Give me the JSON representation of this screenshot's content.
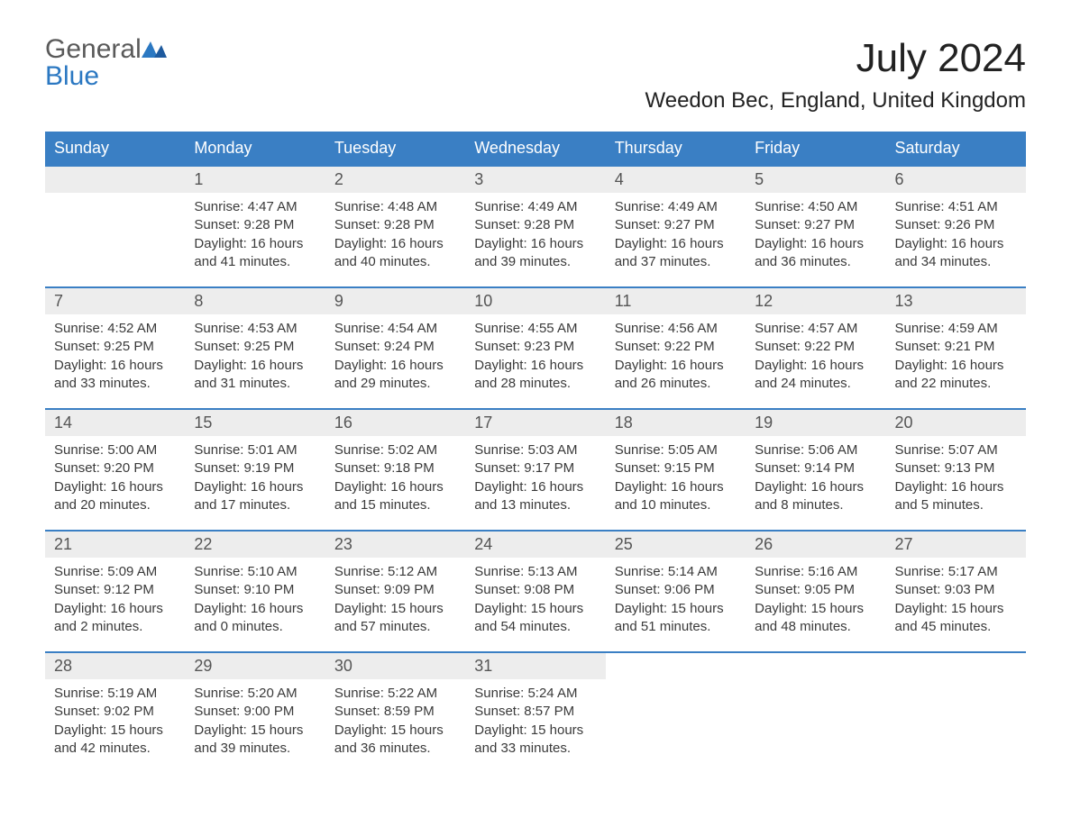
{
  "brand": {
    "general": "General",
    "blue": "Blue"
  },
  "title": "July 2024",
  "location": "Weedon Bec, England, United Kingdom",
  "colors": {
    "header_bg": "#3a7fc4",
    "header_text": "#ffffff",
    "daynum_bg": "#ededed",
    "text": "#3a3a3a",
    "brand_blue": "#2b78c2",
    "brand_gray": "#5a5a5a"
  },
  "weekdays": [
    "Sunday",
    "Monday",
    "Tuesday",
    "Wednesday",
    "Thursday",
    "Friday",
    "Saturday"
  ],
  "weeks": [
    [
      null,
      {
        "n": "1",
        "sunrise": "4:47 AM",
        "sunset": "9:28 PM",
        "dl1": "Daylight: 16 hours",
        "dl2": "and 41 minutes."
      },
      {
        "n": "2",
        "sunrise": "4:48 AM",
        "sunset": "9:28 PM",
        "dl1": "Daylight: 16 hours",
        "dl2": "and 40 minutes."
      },
      {
        "n": "3",
        "sunrise": "4:49 AM",
        "sunset": "9:28 PM",
        "dl1": "Daylight: 16 hours",
        "dl2": "and 39 minutes."
      },
      {
        "n": "4",
        "sunrise": "4:49 AM",
        "sunset": "9:27 PM",
        "dl1": "Daylight: 16 hours",
        "dl2": "and 37 minutes."
      },
      {
        "n": "5",
        "sunrise": "4:50 AM",
        "sunset": "9:27 PM",
        "dl1": "Daylight: 16 hours",
        "dl2": "and 36 minutes."
      },
      {
        "n": "6",
        "sunrise": "4:51 AM",
        "sunset": "9:26 PM",
        "dl1": "Daylight: 16 hours",
        "dl2": "and 34 minutes."
      }
    ],
    [
      {
        "n": "7",
        "sunrise": "4:52 AM",
        "sunset": "9:25 PM",
        "dl1": "Daylight: 16 hours",
        "dl2": "and 33 minutes."
      },
      {
        "n": "8",
        "sunrise": "4:53 AM",
        "sunset": "9:25 PM",
        "dl1": "Daylight: 16 hours",
        "dl2": "and 31 minutes."
      },
      {
        "n": "9",
        "sunrise": "4:54 AM",
        "sunset": "9:24 PM",
        "dl1": "Daylight: 16 hours",
        "dl2": "and 29 minutes."
      },
      {
        "n": "10",
        "sunrise": "4:55 AM",
        "sunset": "9:23 PM",
        "dl1": "Daylight: 16 hours",
        "dl2": "and 28 minutes."
      },
      {
        "n": "11",
        "sunrise": "4:56 AM",
        "sunset": "9:22 PM",
        "dl1": "Daylight: 16 hours",
        "dl2": "and 26 minutes."
      },
      {
        "n": "12",
        "sunrise": "4:57 AM",
        "sunset": "9:22 PM",
        "dl1": "Daylight: 16 hours",
        "dl2": "and 24 minutes."
      },
      {
        "n": "13",
        "sunrise": "4:59 AM",
        "sunset": "9:21 PM",
        "dl1": "Daylight: 16 hours",
        "dl2": "and 22 minutes."
      }
    ],
    [
      {
        "n": "14",
        "sunrise": "5:00 AM",
        "sunset": "9:20 PM",
        "dl1": "Daylight: 16 hours",
        "dl2": "and 20 minutes."
      },
      {
        "n": "15",
        "sunrise": "5:01 AM",
        "sunset": "9:19 PM",
        "dl1": "Daylight: 16 hours",
        "dl2": "and 17 minutes."
      },
      {
        "n": "16",
        "sunrise": "5:02 AM",
        "sunset": "9:18 PM",
        "dl1": "Daylight: 16 hours",
        "dl2": "and 15 minutes."
      },
      {
        "n": "17",
        "sunrise": "5:03 AM",
        "sunset": "9:17 PM",
        "dl1": "Daylight: 16 hours",
        "dl2": "and 13 minutes."
      },
      {
        "n": "18",
        "sunrise": "5:05 AM",
        "sunset": "9:15 PM",
        "dl1": "Daylight: 16 hours",
        "dl2": "and 10 minutes."
      },
      {
        "n": "19",
        "sunrise": "5:06 AM",
        "sunset": "9:14 PM",
        "dl1": "Daylight: 16 hours",
        "dl2": "and 8 minutes."
      },
      {
        "n": "20",
        "sunrise": "5:07 AM",
        "sunset": "9:13 PM",
        "dl1": "Daylight: 16 hours",
        "dl2": "and 5 minutes."
      }
    ],
    [
      {
        "n": "21",
        "sunrise": "5:09 AM",
        "sunset": "9:12 PM",
        "dl1": "Daylight: 16 hours",
        "dl2": "and 2 minutes."
      },
      {
        "n": "22",
        "sunrise": "5:10 AM",
        "sunset": "9:10 PM",
        "dl1": "Daylight: 16 hours",
        "dl2": "and 0 minutes."
      },
      {
        "n": "23",
        "sunrise": "5:12 AM",
        "sunset": "9:09 PM",
        "dl1": "Daylight: 15 hours",
        "dl2": "and 57 minutes."
      },
      {
        "n": "24",
        "sunrise": "5:13 AM",
        "sunset": "9:08 PM",
        "dl1": "Daylight: 15 hours",
        "dl2": "and 54 minutes."
      },
      {
        "n": "25",
        "sunrise": "5:14 AM",
        "sunset": "9:06 PM",
        "dl1": "Daylight: 15 hours",
        "dl2": "and 51 minutes."
      },
      {
        "n": "26",
        "sunrise": "5:16 AM",
        "sunset": "9:05 PM",
        "dl1": "Daylight: 15 hours",
        "dl2": "and 48 minutes."
      },
      {
        "n": "27",
        "sunrise": "5:17 AM",
        "sunset": "9:03 PM",
        "dl1": "Daylight: 15 hours",
        "dl2": "and 45 minutes."
      }
    ],
    [
      {
        "n": "28",
        "sunrise": "5:19 AM",
        "sunset": "9:02 PM",
        "dl1": "Daylight: 15 hours",
        "dl2": "and 42 minutes."
      },
      {
        "n": "29",
        "sunrise": "5:20 AM",
        "sunset": "9:00 PM",
        "dl1": "Daylight: 15 hours",
        "dl2": "and 39 minutes."
      },
      {
        "n": "30",
        "sunrise": "5:22 AM",
        "sunset": "8:59 PM",
        "dl1": "Daylight: 15 hours",
        "dl2": "and 36 minutes."
      },
      {
        "n": "31",
        "sunrise": "5:24 AM",
        "sunset": "8:57 PM",
        "dl1": "Daylight: 15 hours",
        "dl2": "and 33 minutes."
      },
      null,
      null,
      null
    ]
  ],
  "labels": {
    "sunrise": "Sunrise: ",
    "sunset": "Sunset: "
  }
}
